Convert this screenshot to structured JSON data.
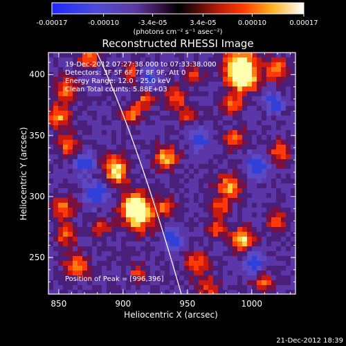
{
  "colorbar": {
    "ticks": [
      "-0.00017",
      "-0.00010",
      "-3.4e-05",
      "3.4e-05",
      "0.00010",
      "0.00017"
    ],
    "units_text": "(photons cm⁻² s⁻¹ asec⁻²)"
  },
  "title": "Reconstructed RHESSI Image",
  "info": {
    "time_range": "19-Dec-2012 07:27:38.000 to 07:33:38.000",
    "detectors": "Detectors: 3F 5F 6F 7F 8F 9F, Att 0",
    "energy": "Energy Range: 12.0 - 25.0 keV",
    "clean": "Clean     Total counts: 5.88E+03"
  },
  "peak_label": "Position of Peak = [996,396]",
  "xaxis": {
    "label": "Heliocentric X (arcsec)",
    "ticks": [
      "850",
      "900",
      "950",
      "1000"
    ],
    "tick_values": [
      850,
      900,
      950,
      1000
    ],
    "range": [
      842,
      1034
    ]
  },
  "yaxis": {
    "label": "Heliocentric Y (arcsec)",
    "ticks": [
      "250",
      "300",
      "350",
      "400"
    ],
    "tick_values": [
      250,
      300,
      350,
      400
    ],
    "range": [
      220,
      418
    ]
  },
  "footer_date": "21-Dec-2012 18:39",
  "colors": {
    "low": "#1030d0",
    "mid_low": "#6a3db0",
    "mid": "#4a1a6a",
    "high": "#e83018",
    "peak": "#ffff90"
  }
}
